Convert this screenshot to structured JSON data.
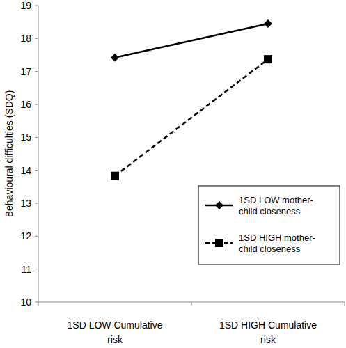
{
  "chart_data": {
    "type": "line",
    "y_label": "Behavioural difficulties (SDQ)",
    "categories": [
      "1SD LOW Cumulative risk",
      "1SD HIGH Cumulative risk"
    ],
    "series": [
      {
        "name": "1SD LOW mother-child closeness",
        "color": "#000000",
        "marker": "diamond",
        "line_style": "solid",
        "values": [
          17.42,
          18.45
        ]
      },
      {
        "name": "1SD HIGH mother-child closeness",
        "color": "#000000",
        "marker": "square",
        "line_style": "dashed",
        "values": [
          13.83,
          17.37
        ]
      }
    ],
    "ylim": [
      10,
      19
    ],
    "yticks": [
      10,
      11,
      12,
      13,
      14,
      15,
      16,
      17,
      18,
      19
    ],
    "grid": false,
    "legend": "bottom-right"
  }
}
